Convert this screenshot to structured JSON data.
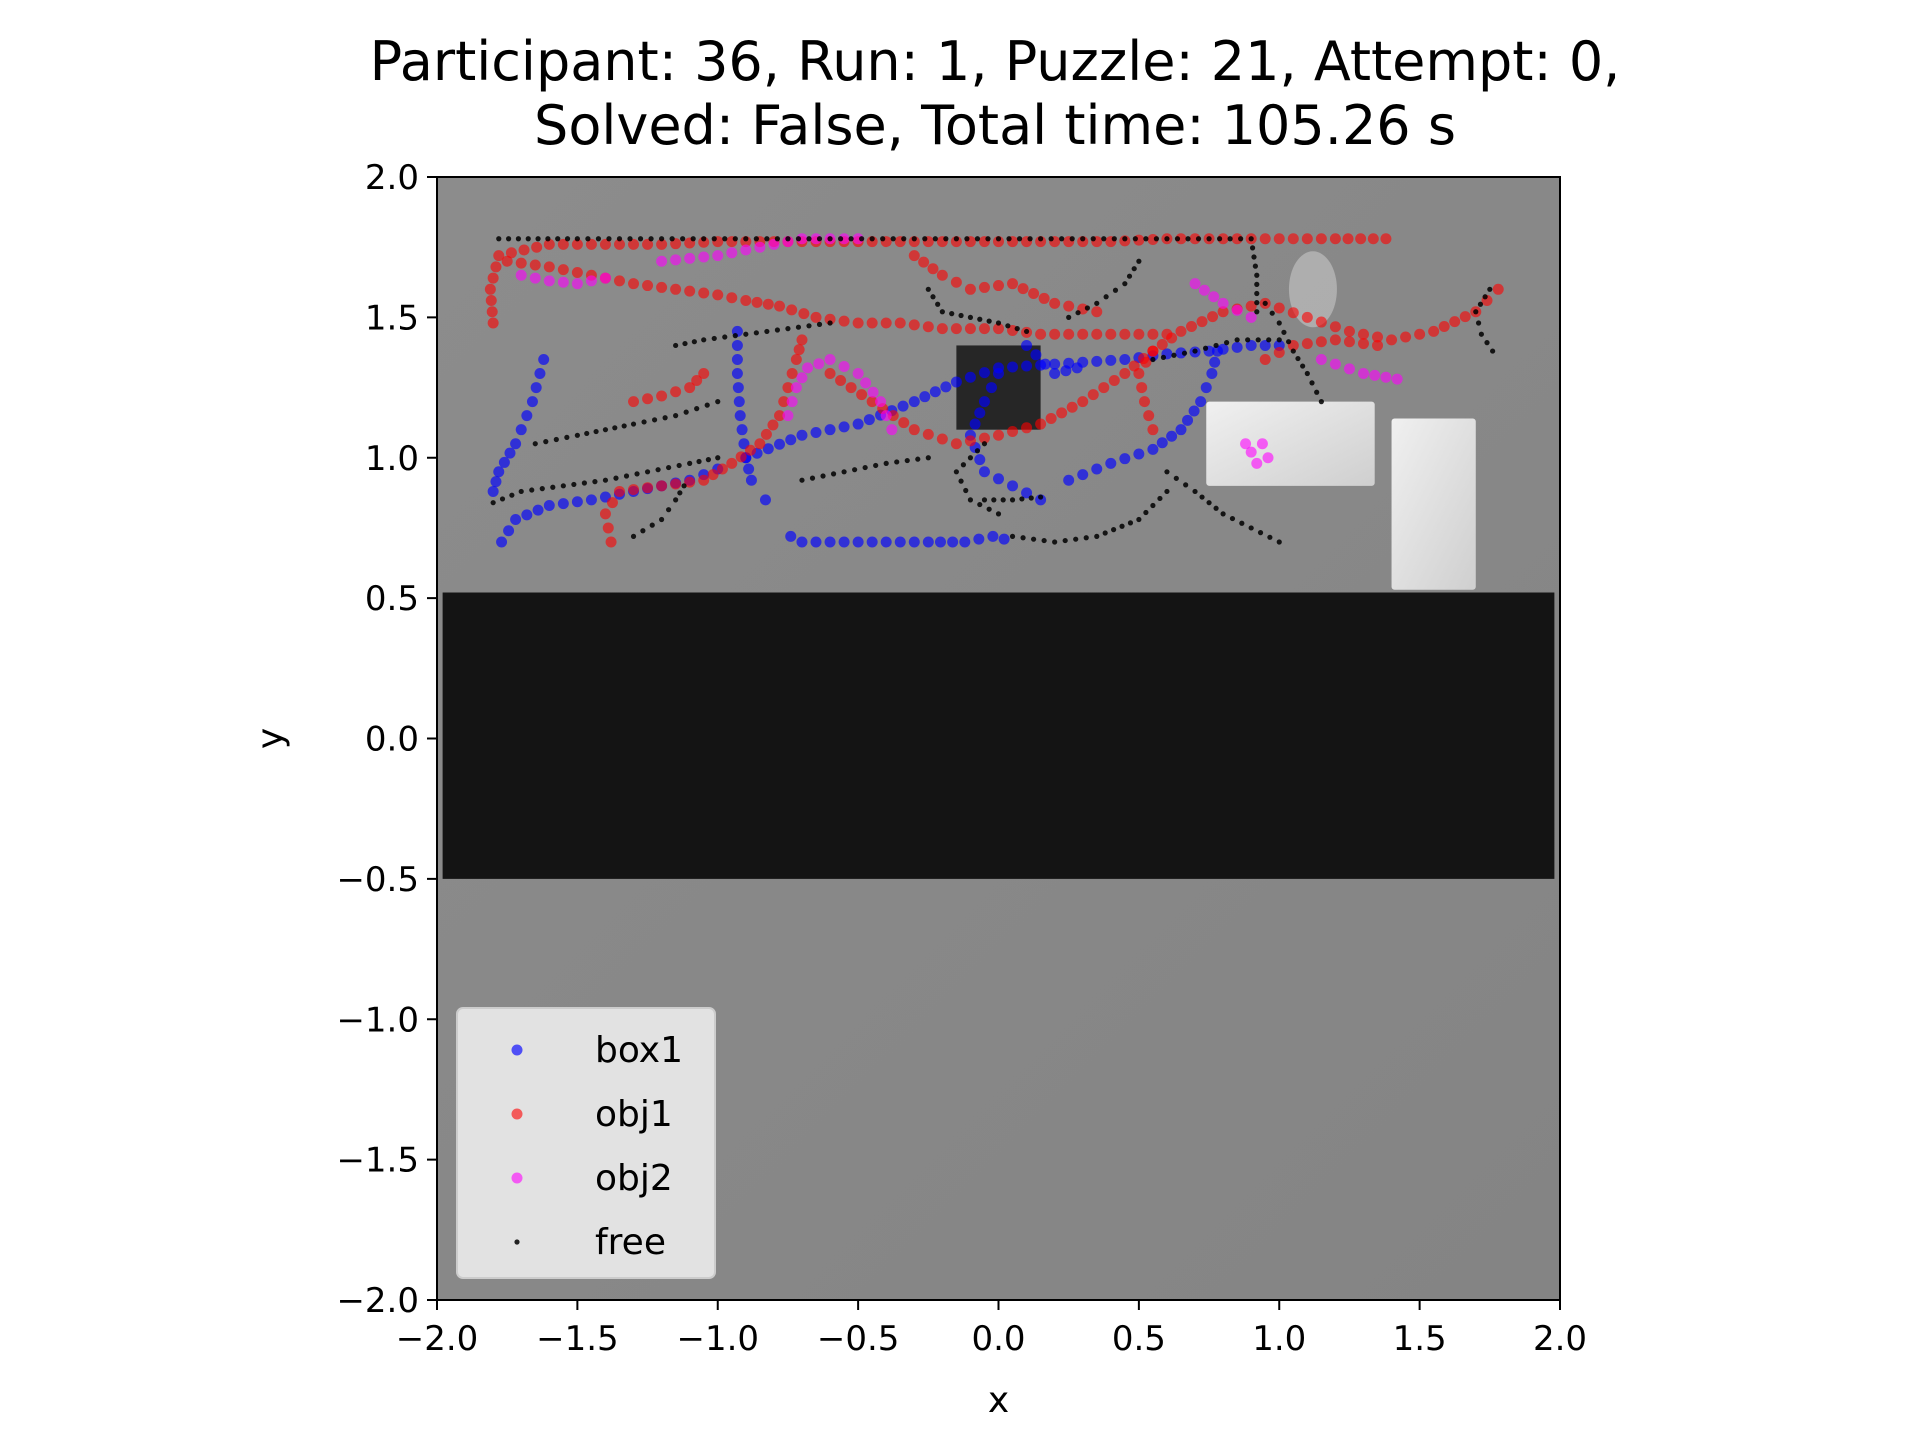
{
  "title_lines": [
    "Participant: 36, Run: 1, Puzzle: 21, Attempt: 0,",
    "Solved: False, Total time: 105.26 s"
  ],
  "colors": {
    "box1": "#0000ff",
    "obj1": "#ff0000",
    "obj2": "#ff00ff",
    "free": "#000000",
    "background": "#888888",
    "band": "#141414"
  },
  "chart_data": {
    "type": "scatter",
    "title": "Participant: 36, Run: 1, Puzzle: 21, Attempt: 0, Solved: False, Total time: 105.26 s",
    "xlabel": "x",
    "ylabel": "y",
    "xlim": [
      -2.0,
      2.0
    ],
    "ylim": [
      -2.0,
      2.0
    ],
    "xticks": [
      "−2.0",
      "−1.5",
      "−1.0",
      "−0.5",
      "0.0",
      "0.5",
      "1.0",
      "1.5",
      "2.0"
    ],
    "yticks": [
      "2.0",
      "1.5",
      "1.0",
      "0.5",
      "0.0",
      "−0.5",
      "−1.0",
      "−1.5",
      "−2.0"
    ],
    "grid": false,
    "legend_position": "lower-left",
    "legend": [
      "box1",
      "obj1",
      "obj2",
      "free"
    ],
    "series": [
      {
        "name": "box1",
        "paths": [
          [
            [
              -1.62,
              1.35
            ],
            [
              -1.66,
              1.2
            ],
            [
              -1.72,
              1.05
            ],
            [
              -1.78,
              0.95
            ],
            [
              -1.8,
              0.88
            ]
          ],
          [
            [
              -1.77,
              0.7
            ],
            [
              -1.72,
              0.78
            ],
            [
              -1.6,
              0.83
            ],
            [
              -1.45,
              0.85
            ],
            [
              -1.3,
              0.88
            ],
            [
              -1.2,
              0.9
            ],
            [
              -1.1,
              0.92
            ],
            [
              -1.0,
              0.96
            ]
          ],
          [
            [
              -0.93,
              1.45
            ],
            [
              -0.93,
              1.3
            ],
            [
              -0.92,
              1.15
            ],
            [
              -0.9,
              1.0
            ],
            [
              -0.88,
              0.92
            ]
          ],
          [
            [
              -0.83,
              0.85
            ]
          ],
          [
            [
              -0.74,
              0.72
            ],
            [
              -0.7,
              0.7
            ],
            [
              -0.55,
              0.7
            ],
            [
              -0.4,
              0.7
            ],
            [
              -0.25,
              0.7
            ],
            [
              -0.12,
              0.7
            ],
            [
              -0.02,
              0.72
            ],
            [
              0.02,
              0.71
            ]
          ],
          [
            [
              -0.9,
              1.0
            ],
            [
              -0.7,
              1.08
            ],
            [
              -0.5,
              1.12
            ],
            [
              -0.3,
              1.2
            ],
            [
              -0.15,
              1.27
            ],
            [
              0.0,
              1.32
            ],
            [
              0.15,
              1.33
            ],
            [
              0.3,
              1.34
            ],
            [
              0.45,
              1.35
            ],
            [
              0.6,
              1.37
            ],
            [
              0.75,
              1.38
            ],
            [
              0.9,
              1.4
            ],
            [
              1.0,
              1.4
            ]
          ],
          [
            [
              0.0,
              1.3
            ],
            [
              -0.05,
              1.2
            ],
            [
              -0.1,
              1.08
            ],
            [
              -0.05,
              0.95
            ],
            [
              0.05,
              0.9
            ],
            [
              0.15,
              0.85
            ]
          ],
          [
            [
              0.25,
              0.92
            ],
            [
              0.4,
              0.98
            ],
            [
              0.55,
              1.03
            ],
            [
              0.65,
              1.1
            ],
            [
              0.72,
              1.2
            ],
            [
              0.76,
              1.3
            ],
            [
              0.78,
              1.38
            ]
          ],
          [
            [
              0.1,
              1.4
            ],
            [
              0.2,
              1.3
            ],
            [
              0.28,
              1.32
            ]
          ]
        ]
      },
      {
        "name": "obj1",
        "paths": [
          [
            [
              -1.8,
              1.48
            ],
            [
              -1.81,
              1.6
            ],
            [
              -1.78,
              1.72
            ],
            [
              -1.6,
              1.76
            ],
            [
              -1.4,
              1.76
            ],
            [
              -1.2,
              1.76
            ],
            [
              -1.0,
              1.77
            ],
            [
              -0.8,
              1.77
            ],
            [
              -0.6,
              1.77
            ],
            [
              -0.4,
              1.77
            ],
            [
              -0.2,
              1.77
            ],
            [
              0.0,
              1.77
            ],
            [
              0.2,
              1.77
            ],
            [
              0.4,
              1.77
            ],
            [
              0.6,
              1.78
            ],
            [
              0.8,
              1.78
            ],
            [
              1.0,
              1.78
            ],
            [
              1.2,
              1.78
            ],
            [
              1.38,
              1.78
            ]
          ],
          [
            [
              -1.75,
              1.7
            ],
            [
              -1.6,
              1.68
            ],
            [
              -1.45,
              1.65
            ],
            [
              -1.3,
              1.62
            ],
            [
              -1.15,
              1.6
            ],
            [
              -1.0,
              1.58
            ],
            [
              -0.9,
              1.56
            ],
            [
              -0.78,
              1.54
            ],
            [
              -0.65,
              1.5
            ],
            [
              -0.5,
              1.48
            ],
            [
              -0.35,
              1.48
            ],
            [
              -0.2,
              1.46
            ],
            [
              0.0,
              1.46
            ],
            [
              0.15,
              1.44
            ],
            [
              0.3,
              1.44
            ],
            [
              0.45,
              1.44
            ],
            [
              0.6,
              1.44
            ]
          ],
          [
            [
              -1.38,
              0.7
            ],
            [
              -1.4,
              0.8
            ],
            [
              -1.35,
              0.88
            ],
            [
              -1.2,
              0.9
            ],
            [
              -1.05,
              0.92
            ],
            [
              -0.95,
              0.98
            ],
            [
              -0.85,
              1.05
            ],
            [
              -0.78,
              1.15
            ],
            [
              -0.75,
              1.25
            ],
            [
              -0.72,
              1.35
            ],
            [
              -0.7,
              1.42
            ]
          ],
          [
            [
              -1.3,
              1.2
            ],
            [
              -1.2,
              1.22
            ],
            [
              -1.1,
              1.25
            ],
            [
              -1.05,
              1.3
            ]
          ],
          [
            [
              -0.6,
              1.3
            ],
            [
              -0.45,
              1.2
            ],
            [
              -0.3,
              1.1
            ],
            [
              -0.15,
              1.05
            ],
            [
              0.0,
              1.08
            ],
            [
              0.15,
              1.12
            ],
            [
              0.3,
              1.2
            ],
            [
              0.45,
              1.3
            ],
            [
              0.55,
              1.38
            ]
          ],
          [
            [
              0.55,
              1.1
            ],
            [
              0.52,
              1.2
            ],
            [
              0.5,
              1.3
            ],
            [
              0.55,
              1.38
            ],
            [
              0.65,
              1.45
            ],
            [
              0.8,
              1.52
            ],
            [
              0.95,
              1.55
            ],
            [
              1.1,
              1.5
            ],
            [
              1.25,
              1.45
            ],
            [
              1.4,
              1.42
            ],
            [
              1.55,
              1.45
            ],
            [
              1.7,
              1.52
            ],
            [
              1.78,
              1.6
            ]
          ],
          [
            [
              0.95,
              1.35
            ],
            [
              1.05,
              1.4
            ],
            [
              1.2,
              1.42
            ],
            [
              1.35,
              1.4
            ]
          ],
          [
            [
              -0.3,
              1.72
            ],
            [
              -0.2,
              1.65
            ],
            [
              -0.1,
              1.6
            ],
            [
              0.05,
              1.62
            ],
            [
              0.2,
              1.55
            ],
            [
              0.35,
              1.52
            ]
          ]
        ]
      },
      {
        "name": "obj2",
        "paths": [
          [
            [
              -1.7,
              1.65
            ],
            [
              -1.6,
              1.63
            ],
            [
              -1.5,
              1.62
            ],
            [
              -1.4,
              1.64
            ]
          ],
          [
            [
              -1.2,
              1.7
            ],
            [
              -1.0,
              1.72
            ],
            [
              -0.85,
              1.75
            ],
            [
              -0.7,
              1.78
            ],
            [
              -0.5,
              1.78
            ]
          ],
          [
            [
              -0.75,
              1.15
            ],
            [
              -0.72,
              1.25
            ],
            [
              -0.68,
              1.32
            ],
            [
              -0.6,
              1.35
            ],
            [
              -0.5,
              1.3
            ],
            [
              -0.42,
              1.2
            ],
            [
              -0.38,
              1.1
            ]
          ],
          [
            [
              0.88,
              1.05
            ],
            [
              0.9,
              1.02
            ],
            [
              0.92,
              0.98
            ],
            [
              0.96,
              1.0
            ],
            [
              0.94,
              1.05
            ]
          ],
          [
            [
              1.15,
              1.35
            ],
            [
              1.3,
              1.3
            ],
            [
              1.42,
              1.28
            ]
          ],
          [
            [
              0.7,
              1.62
            ],
            [
              0.8,
              1.55
            ],
            [
              0.9,
              1.5
            ]
          ]
        ]
      },
      {
        "name": "free",
        "paths": [
          [
            [
              -1.78,
              1.78
            ],
            [
              -1.5,
              1.78
            ],
            [
              -1.2,
              1.78
            ],
            [
              -0.9,
              1.78
            ],
            [
              -0.6,
              1.78
            ],
            [
              -0.3,
              1.78
            ],
            [
              0.0,
              1.78
            ],
            [
              0.3,
              1.78
            ],
            [
              0.6,
              1.78
            ],
            [
              0.9,
              1.78
            ],
            [
              0.92,
              1.65
            ],
            [
              0.92,
              1.52
            ]
          ],
          [
            [
              -1.8,
              0.84
            ],
            [
              -1.7,
              0.88
            ],
            [
              -1.55,
              0.9
            ],
            [
              -1.4,
              0.92
            ],
            [
              -1.25,
              0.95
            ],
            [
              -1.1,
              0.98
            ],
            [
              -1.0,
              1.0
            ]
          ],
          [
            [
              -1.65,
              1.05
            ],
            [
              -1.5,
              1.08
            ],
            [
              -1.3,
              1.12
            ],
            [
              -1.15,
              1.15
            ],
            [
              -1.0,
              1.2
            ]
          ],
          [
            [
              -1.3,
              0.72
            ],
            [
              -1.2,
              0.78
            ],
            [
              -1.15,
              0.85
            ],
            [
              -1.12,
              0.9
            ]
          ],
          [
            [
              -1.15,
              1.4
            ],
            [
              -1.05,
              1.42
            ],
            [
              -0.9,
              1.44
            ],
            [
              -0.75,
              1.46
            ],
            [
              -0.6,
              1.48
            ]
          ],
          [
            [
              -0.7,
              0.92
            ],
            [
              -0.55,
              0.95
            ],
            [
              -0.4,
              0.98
            ],
            [
              -0.25,
              1.0
            ]
          ],
          [
            [
              -0.05,
              0.85
            ],
            [
              0.05,
              0.85
            ],
            [
              0.15,
              0.86
            ]
          ],
          [
            [
              0.05,
              0.72
            ],
            [
              0.2,
              0.7
            ],
            [
              0.35,
              0.72
            ],
            [
              0.5,
              0.78
            ],
            [
              0.6,
              0.88
            ]
          ],
          [
            [
              0.25,
              1.5
            ],
            [
              0.35,
              1.55
            ],
            [
              0.45,
              1.62
            ],
            [
              0.5,
              1.7
            ]
          ],
          [
            [
              0.55,
              1.35
            ],
            [
              0.7,
              1.38
            ],
            [
              0.85,
              1.42
            ],
            [
              1.0,
              1.42
            ]
          ],
          [
            [
              1.15,
              1.2
            ],
            [
              1.1,
              1.3
            ],
            [
              1.05,
              1.38
            ],
            [
              1.0,
              1.48
            ],
            [
              0.95,
              1.55
            ]
          ],
          [
            [
              0.6,
              0.95
            ],
            [
              0.7,
              0.88
            ],
            [
              0.8,
              0.8
            ],
            [
              0.9,
              0.75
            ],
            [
              1.0,
              0.7
            ]
          ],
          [
            [
              1.75,
              1.6
            ],
            [
              1.7,
              1.52
            ],
            [
              1.72,
              1.44
            ],
            [
              1.76,
              1.38
            ]
          ],
          [
            [
              -0.25,
              1.6
            ],
            [
              -0.2,
              1.52
            ],
            [
              -0.1,
              1.5
            ],
            [
              0.0,
              1.48
            ],
            [
              0.1,
              1.45
            ]
          ],
          [
            [
              -0.05,
              1.05
            ],
            [
              -0.15,
              0.95
            ],
            [
              -0.1,
              0.85
            ],
            [
              0.0,
              0.8
            ]
          ]
        ]
      }
    ],
    "scene": {
      "band": {
        "x": [
          -1.98,
          1.98
        ],
        "y": [
          -0.5,
          0.52
        ]
      },
      "dark_box": {
        "x": [
          -0.15,
          0.15
        ],
        "y": [
          1.1,
          1.4
        ]
      },
      "light_box_1": {
        "x": [
          0.74,
          1.34
        ],
        "y": [
          0.9,
          1.2
        ]
      },
      "light_box_2": {
        "x": [
          1.4,
          1.7
        ],
        "y": [
          0.53,
          1.14
        ]
      }
    }
  }
}
